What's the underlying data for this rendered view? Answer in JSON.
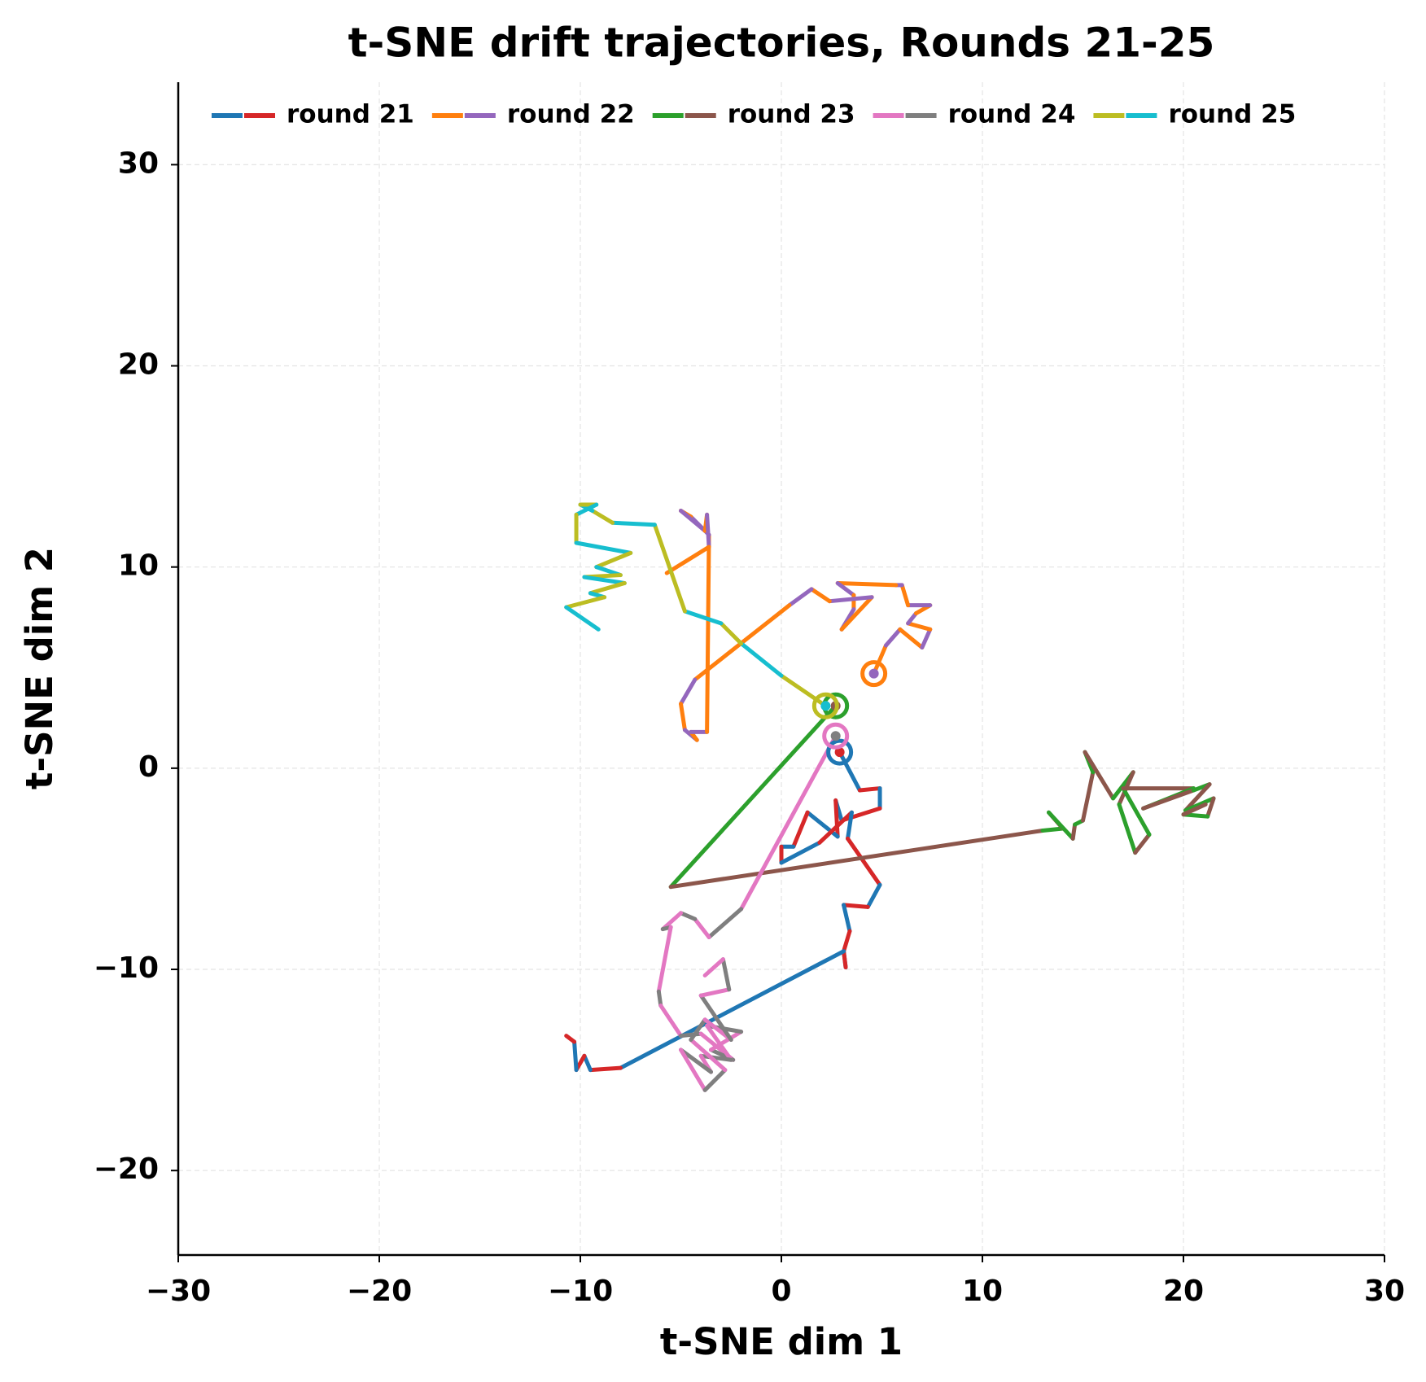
{
  "chart_data": {
    "type": "trajectory",
    "title": "t-SNE drift trajectories, Rounds 21-25",
    "xlabel": "t-SNE dim 1",
    "ylabel": "t-SNE dim 2",
    "xlim": [
      -30,
      30
    ],
    "ylim": [
      -24.2,
      34.1
    ],
    "xticks": [
      {
        "value": -30,
        "label": "−30"
      },
      {
        "value": -20,
        "label": "−20"
      },
      {
        "value": -10,
        "label": "−10"
      },
      0,
      10,
      20,
      30
    ],
    "yticks": [
      {
        "value": -20,
        "label": "−20"
      },
      {
        "value": -10,
        "label": "−10"
      },
      0,
      10,
      20,
      30
    ],
    "grid": true,
    "legend": "top",
    "series": [
      {
        "name": "round 21",
        "colors": [
          "#1f77b4",
          "#d62728"
        ],
        "x": [
          2.9,
          3.9,
          4.9,
          4.9,
          3.0,
          2.7,
          2.8,
          1.3,
          0.6,
          0.0,
          0.0,
          1.9,
          3.5,
          3.3,
          4.9,
          4.3,
          3.1,
          3.4,
          3.1,
          3.2,
          3.1,
          -8.0,
          -9.5,
          -9.8,
          -10.2,
          -10.3,
          -10.7
        ],
        "y": [
          0.8,
          -1.1,
          -1.0,
          -2.0,
          -2.6,
          -1.6,
          -3.4,
          -2.2,
          -3.9,
          -3.9,
          -4.7,
          -3.7,
          -2.2,
          -3.5,
          -5.8,
          -6.9,
          -6.8,
          -8.1,
          -9.1,
          -9.9,
          -9.1,
          -14.9,
          -15.0,
          -14.3,
          -15.0,
          -13.6,
          -13.3
        ]
      },
      {
        "name": "round 22",
        "colors": [
          "#ff7f0e",
          "#9467bd"
        ],
        "x": [
          4.6,
          5.2,
          5.9,
          7.0,
          7.4,
          6.3,
          6.7,
          7.4,
          6.3,
          6.0,
          5.7,
          2.8,
          3.6,
          3.6,
          3.0,
          4.5,
          2.4,
          1.5,
          0.4,
          -4.3,
          -5.0,
          -4.8,
          -4.2,
          -4.5,
          -3.7,
          -3.6,
          -4.5,
          -5.0,
          -3.8,
          -3.7,
          -3.6,
          -5.7
        ],
        "y": [
          4.7,
          6.1,
          6.9,
          6.0,
          6.9,
          7.2,
          7.7,
          8.1,
          8.1,
          9.1,
          9.1,
          9.2,
          8.6,
          7.9,
          6.9,
          8.5,
          8.3,
          8.9,
          8.1,
          4.4,
          3.2,
          1.9,
          1.4,
          1.8,
          1.8,
          11.6,
          12.5,
          12.8,
          11.8,
          12.6,
          11.0,
          9.7
        ]
      },
      {
        "name": "round 23",
        "colors": [
          "#2ca02c",
          "#8c564b"
        ],
        "x": [
          2.7,
          -5.5,
          13.0,
          14.0,
          13.3,
          14.5,
          14.6,
          15.0,
          15.5,
          15.1,
          16.5,
          17.5,
          16.8,
          17.6,
          18.3,
          17.0,
          20.5,
          18.0,
          20.5,
          21.3,
          20.1,
          21.5,
          21.2,
          20.0,
          21.1
        ],
        "y": [
          3.1,
          -5.9,
          -3.1,
          -3.0,
          -2.2,
          -3.5,
          -2.8,
          -2.6,
          -0.2,
          0.8,
          -1.5,
          -0.2,
          -1.8,
          -4.2,
          -3.3,
          -1.0,
          -1.0,
          -2.0,
          -1.1,
          -0.8,
          -2.1,
          -1.5,
          -2.4,
          -2.3,
          -1.8
        ]
      },
      {
        "name": "round 24",
        "colors": [
          "#e377c2",
          "#7f7f7f"
        ],
        "x": [
          2.7,
          -2.0,
          -3.6,
          -4.3,
          -5.0,
          -5.9,
          -5.5,
          -6.1,
          -6.0,
          -5.0,
          -4.0,
          -2.4,
          -3.5,
          -2.0,
          -3.7,
          -2.5,
          -4.0,
          -3.5,
          -5.0,
          -3.8,
          -2.8,
          -4.5,
          -3.8,
          -2.5,
          -4.0,
          -2.6,
          -2.9,
          -3.8
        ],
        "y": [
          1.6,
          -7.0,
          -8.4,
          -7.5,
          -7.2,
          -8.0,
          -7.9,
          -11.1,
          -11.8,
          -13.3,
          -13.2,
          -14.5,
          -14.0,
          -13.1,
          -12.8,
          -14.5,
          -14.3,
          -15.1,
          -14.0,
          -16.0,
          -15.0,
          -13.5,
          -12.5,
          -13.5,
          -11.3,
          -11.0,
          -9.5,
          -10.3
        ]
      },
      {
        "name": "round 25",
        "colors": [
          "#bcbd22",
          "#17becf"
        ],
        "x": [
          2.2,
          0.0,
          -2.0,
          -3.0,
          -4.8,
          -6.3,
          -8.4,
          -9.4,
          -10.0,
          -9.2,
          -10.2,
          -10.2,
          -7.5,
          -9.2,
          -8.0,
          -9.8,
          -7.8,
          -9.5,
          -8.8,
          -10.7,
          -9.1
        ],
        "y": [
          3.1,
          4.6,
          6.2,
          7.2,
          7.8,
          12.1,
          12.2,
          12.8,
          13.1,
          13.1,
          12.6,
          11.2,
          10.7,
          10.0,
          9.6,
          9.5,
          9.2,
          8.7,
          8.5,
          8.0,
          6.9
        ]
      }
    ]
  }
}
